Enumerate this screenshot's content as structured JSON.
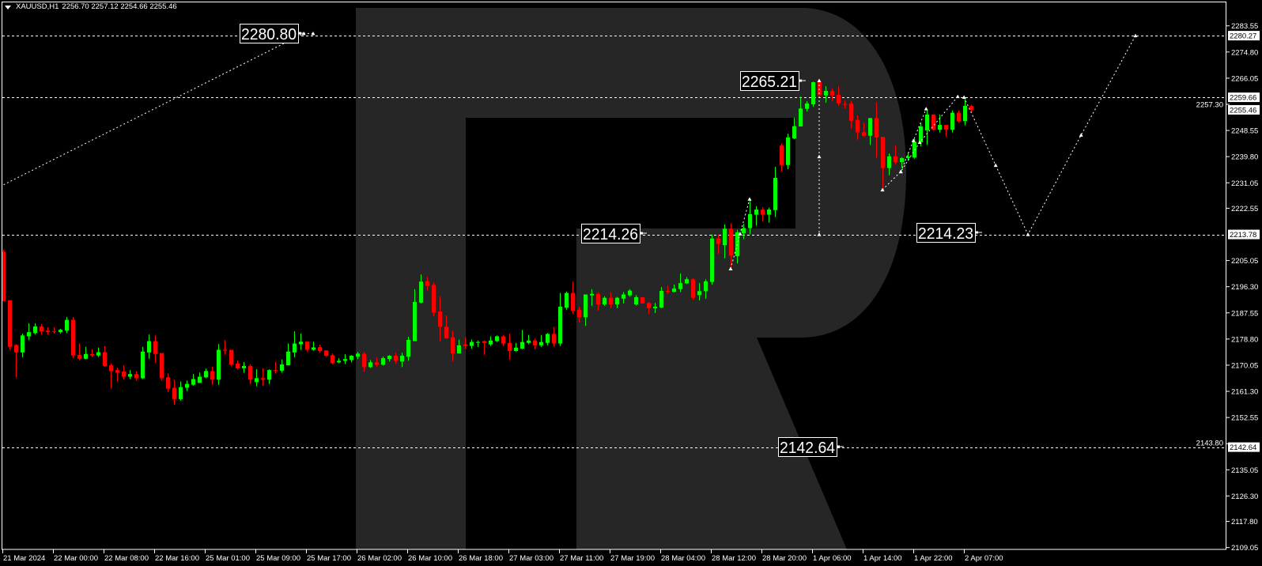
{
  "header": {
    "menu_icon": "triangle-down-icon",
    "symbol": "XAUUSD,H1",
    "ohlc": "2256.70 2257.12 2254.66 2255.46"
  },
  "colors": {
    "background": "#000000",
    "bull": "#00ff00",
    "bear": "#ff0000",
    "watermark": "#262626",
    "foreground": "#ffffff"
  },
  "chart_data": {
    "type": "candlestick",
    "symbol": "XAUUSD",
    "timeframe": "H1",
    "ylim": [
      2109.05,
      2283.55
    ],
    "grid": false,
    "y_ticks": [
      "2283.55",
      "2274.80",
      "2266.05",
      "2257.30",
      "2248.55",
      "2239.80",
      "2231.05",
      "2222.55",
      "2205.05",
      "2196.30",
      "2187.55",
      "2178.80",
      "2170.05",
      "2161.30",
      "2152.55",
      "2143.80",
      "2135.05",
      "2126.30",
      "2117.80",
      "2109.05"
    ],
    "x_ticks": [
      {
        "label": "21 Mar 2024",
        "bar": 0
      },
      {
        "label": "22 Mar 00:00",
        "bar": 8
      },
      {
        "label": "22 Mar 08:00",
        "bar": 16
      },
      {
        "label": "22 Mar 16:00",
        "bar": 24
      },
      {
        "label": "25 Mar 01:00",
        "bar": 32
      },
      {
        "label": "25 Mar 09:00",
        "bar": 40
      },
      {
        "label": "25 Mar 17:00",
        "bar": 48
      },
      {
        "label": "26 Mar 02:00",
        "bar": 56
      },
      {
        "label": "26 Mar 10:00",
        "bar": 64
      },
      {
        "label": "26 Mar 18:00",
        "bar": 72
      },
      {
        "label": "27 Mar 03:00",
        "bar": 80
      },
      {
        "label": "27 Mar 11:00",
        "bar": 88
      },
      {
        "label": "27 Mar 19:00",
        "bar": 96
      },
      {
        "label": "28 Mar 04:00",
        "bar": 104
      },
      {
        "label": "28 Mar 12:00",
        "bar": 112
      },
      {
        "label": "28 Mar 20:00",
        "bar": 120
      },
      {
        "label": "1 Apr 06:00",
        "bar": 128
      },
      {
        "label": "1 Apr 14:00",
        "bar": 136
      },
      {
        "label": "1 Apr 22:00",
        "bar": 144
      },
      {
        "label": "2 Apr 07:00",
        "bar": 152
      }
    ],
    "candle_format": [
      "open",
      "high",
      "low",
      "close"
    ],
    "candles": [
      [
        2208.0,
        2208.6,
        2191.5,
        2191.5
      ],
      [
        2191.8,
        2191.8,
        2175.1,
        2176.2
      ],
      [
        2176.8,
        2177.1,
        2166.0,
        2174.3
      ],
      [
        2174.3,
        2180.6,
        2172.7,
        2180.0
      ],
      [
        2179.7,
        2184.1,
        2178.4,
        2181.1
      ],
      [
        2180.8,
        2184.1,
        2180.3,
        2183.0
      ],
      [
        2183.0,
        2183.8,
        2180.3,
        2181.4
      ],
      [
        2181.6,
        2182.7,
        2180.3,
        2181.1
      ],
      [
        2181.4,
        2182.7,
        2180.6,
        2181.2
      ],
      [
        2181.1,
        2182.2,
        2180.6,
        2181.9
      ],
      [
        2181.6,
        2186.2,
        2180.8,
        2185.2
      ],
      [
        2185.2,
        2186.2,
        2172.5,
        2173.3
      ],
      [
        2173.5,
        2177.3,
        2171.7,
        2172.2
      ],
      [
        2172.2,
        2176.2,
        2172.0,
        2173.8
      ],
      [
        2173.8,
        2175.4,
        2172.7,
        2173.3
      ],
      [
        2173.3,
        2176.0,
        2172.7,
        2174.4
      ],
      [
        2174.4,
        2176.5,
        2169.5,
        2169.8
      ],
      [
        2170.0,
        2170.6,
        2162.2,
        2168.1
      ],
      [
        2168.4,
        2169.2,
        2164.6,
        2167.6
      ],
      [
        2167.9,
        2170.0,
        2165.2,
        2166.2
      ],
      [
        2166.2,
        2168.4,
        2165.4,
        2167.1
      ],
      [
        2167.1,
        2168.1,
        2164.9,
        2165.7
      ],
      [
        2165.7,
        2176.2,
        2165.4,
        2174.6
      ],
      [
        2174.3,
        2180.3,
        2172.2,
        2178.1
      ],
      [
        2178.1,
        2180.0,
        2170.8,
        2173.8
      ],
      [
        2174.1,
        2174.1,
        2164.9,
        2165.7
      ],
      [
        2166.0,
        2167.3,
        2161.1,
        2162.2
      ],
      [
        2162.5,
        2165.1,
        2156.8,
        2158.7
      ],
      [
        2158.7,
        2164.6,
        2158.2,
        2162.7
      ],
      [
        2162.5,
        2164.9,
        2161.4,
        2163.8
      ],
      [
        2163.5,
        2167.1,
        2163.2,
        2165.4
      ],
      [
        2164.1,
        2167.6,
        2164.1,
        2166.2
      ],
      [
        2166.0,
        2168.9,
        2165.7,
        2168.1
      ],
      [
        2168.1,
        2169.5,
        2163.5,
        2165.2
      ],
      [
        2165.2,
        2177.1,
        2163.5,
        2175.2
      ],
      [
        2175.2,
        2178.4,
        2173.5,
        2174.9
      ],
      [
        2175.2,
        2175.2,
        2169.8,
        2170.3
      ],
      [
        2170.6,
        2171.7,
        2168.7,
        2169.0
      ],
      [
        2169.0,
        2171.1,
        2167.5,
        2169.8
      ],
      [
        2169.8,
        2170.3,
        2163.8,
        2165.2
      ],
      [
        2164.4,
        2168.7,
        2163.0,
        2165.7
      ],
      [
        2165.7,
        2169.0,
        2163.2,
        2165.2
      ],
      [
        2165.2,
        2168.7,
        2163.8,
        2168.4
      ],
      [
        2168.4,
        2171.1,
        2167.3,
        2168.2
      ],
      [
        2168.2,
        2172.0,
        2167.6,
        2170.3
      ],
      [
        2170.0,
        2177.3,
        2170.0,
        2174.6
      ],
      [
        2174.3,
        2181.4,
        2172.7,
        2177.3
      ],
      [
        2177.1,
        2180.6,
        2175.2,
        2177.9
      ],
      [
        2177.9,
        2178.1,
        2174.6,
        2175.2
      ],
      [
        2175.2,
        2177.9,
        2174.9,
        2176.0
      ],
      [
        2176.1,
        2176.9,
        2174.2,
        2174.8
      ],
      [
        2175.0,
        2175.0,
        2172.9,
        2173.2
      ],
      [
        2173.4,
        2174.0,
        2170.4,
        2170.7
      ],
      [
        2171.0,
        2172.4,
        2170.7,
        2171.5
      ],
      [
        2171.5,
        2173.7,
        2170.4,
        2172.1
      ],
      [
        2171.8,
        2173.4,
        2171.0,
        2173.2
      ],
      [
        2172.9,
        2174.5,
        2172.1,
        2173.9
      ],
      [
        2173.9,
        2174.5,
        2167.8,
        2169.4
      ],
      [
        2169.4,
        2171.8,
        2169.1,
        2171.0
      ],
      [
        2171.0,
        2172.6,
        2169.4,
        2170.2
      ],
      [
        2170.2,
        2172.9,
        2169.9,
        2172.4
      ],
      [
        2172.1,
        2173.4,
        2171.3,
        2173.2
      ],
      [
        2173.2,
        2174.2,
        2170.5,
        2171.5
      ],
      [
        2171.3,
        2174.2,
        2169.4,
        2173.2
      ],
      [
        2172.9,
        2179.6,
        2171.5,
        2178.5
      ],
      [
        2178.1,
        2195.5,
        2178.1,
        2191.2
      ],
      [
        2191.0,
        2200.4,
        2190.7,
        2198.0
      ],
      [
        2198.2,
        2199.6,
        2195.0,
        2196.6
      ],
      [
        2196.9,
        2197.7,
        2186.4,
        2187.7
      ],
      [
        2188.0,
        2193.1,
        2178.1,
        2182.9
      ],
      [
        2182.9,
        2186.7,
        2178.9,
        2179.1
      ],
      [
        2179.4,
        2181.6,
        2171.3,
        2174.0
      ],
      [
        2174.0,
        2178.6,
        2174.0,
        2176.7
      ],
      [
        2177.0,
        2179.4,
        2175.6,
        2176.5
      ],
      [
        2176.5,
        2178.6,
        2175.6,
        2177.8
      ],
      [
        2177.6,
        2178.3,
        2176.2,
        2177.8
      ],
      [
        2178.1,
        2178.3,
        2173.5,
        2177.5
      ],
      [
        2177.0,
        2179.7,
        2176.5,
        2178.3
      ],
      [
        2178.1,
        2180.0,
        2177.8,
        2179.7
      ],
      [
        2179.7,
        2180.2,
        2176.5,
        2177.3
      ],
      [
        2177.5,
        2180.5,
        2171.9,
        2174.8
      ],
      [
        2174.8,
        2177.5,
        2174.6,
        2175.9
      ],
      [
        2175.6,
        2181.8,
        2175.4,
        2177.8
      ],
      [
        2177.5,
        2180.2,
        2177.0,
        2178.3
      ],
      [
        2178.3,
        2178.9,
        2175.4,
        2176.7
      ],
      [
        2176.7,
        2180.2,
        2176.2,
        2177.8
      ],
      [
        2177.5,
        2180.8,
        2176.7,
        2180.5
      ],
      [
        2180.5,
        2182.9,
        2176.2,
        2177.3
      ],
      [
        2177.3,
        2194.2,
        2176.5,
        2189.6
      ],
      [
        2189.3,
        2194.7,
        2188.6,
        2194.2
      ],
      [
        2194.2,
        2198.0,
        2187.2,
        2188.3
      ],
      [
        2188.6,
        2189.6,
        2184.3,
        2186.1
      ],
      [
        2186.1,
        2193.7,
        2183.2,
        2193.7
      ],
      [
        2193.4,
        2195.5,
        2189.9,
        2193.9
      ],
      [
        2193.9,
        2194.5,
        2188.3,
        2190.4
      ],
      [
        2190.4,
        2193.1,
        2189.9,
        2192.6
      ],
      [
        2192.6,
        2194.5,
        2189.1,
        2190.4
      ],
      [
        2190.4,
        2192.9,
        2189.1,
        2192.6
      ],
      [
        2192.3,
        2194.5,
        2190.7,
        2193.7
      ],
      [
        2193.4,
        2195.5,
        2192.9,
        2195.0
      ],
      [
        2190.4,
        2193.5,
        2190.0,
        2192.8
      ],
      [
        2192.8,
        2192.8,
        2190.7,
        2190.7
      ],
      [
        2190.9,
        2191.2,
        2187.2,
        2189.1
      ],
      [
        2189.1,
        2190.9,
        2187.5,
        2189.6
      ],
      [
        2189.3,
        2196.2,
        2189.1,
        2194.9
      ],
      [
        2194.9,
        2196.7,
        2193.8,
        2194.7
      ],
      [
        2194.6,
        2197.0,
        2194.4,
        2195.7
      ],
      [
        2195.5,
        2200.7,
        2194.5,
        2197.5
      ],
      [
        2197.4,
        2199.5,
        2197.2,
        2198.8
      ],
      [
        2198.8,
        2199.2,
        2192.0,
        2192.6
      ],
      [
        2193.5,
        2197.5,
        2191.7,
        2194.8
      ],
      [
        2194.8,
        2198.8,
        2192.2,
        2198.1
      ],
      [
        2197.9,
        2213.8,
        2197.0,
        2212.4
      ],
      [
        2212.4,
        2213.8,
        2207.2,
        2210.6
      ],
      [
        2210.2,
        2217.1,
        2205.8,
        2215.7
      ],
      [
        2215.7,
        2217.5,
        2202.3,
        2206.7
      ],
      [
        2206.5,
        2215.3,
        2204.1,
        2214.5
      ],
      [
        2214.2,
        2217.3,
        2212.2,
        2215.9
      ],
      [
        2215.9,
        2225.6,
        2213.8,
        2220.6
      ],
      [
        2220.4,
        2223.3,
        2216.7,
        2222.1
      ],
      [
        2222.1,
        2222.8,
        2218.2,
        2220.4
      ],
      [
        2220.4,
        2222.8,
        2217.7,
        2222.1
      ],
      [
        2221.9,
        2236.4,
        2219.6,
        2232.7
      ],
      [
        2243.5,
        2244.2,
        2234.9,
        2237.0
      ],
      [
        2237.0,
        2247.5,
        2235.6,
        2246.2
      ],
      [
        2245.9,
        2252.9,
        2245.6,
        2250.0
      ],
      [
        2249.9,
        2259.8,
        2249.9,
        2255.9
      ],
      [
        2255.8,
        2258.4,
        2254.9,
        2257.6
      ],
      [
        2257.3,
        2264.9,
        2256.5,
        2264.7
      ],
      [
        2264.7,
        2265.21,
        2260.3,
        2260.3
      ],
      [
        2260.3,
        2263.4,
        2257.8,
        2261.8
      ],
      [
        2261.8,
        2262.7,
        2258.4,
        2260.3
      ],
      [
        2260.5,
        2263.4,
        2256.8,
        2257.6
      ],
      [
        2257.4,
        2258.7,
        2255.9,
        2257.3
      ],
      [
        2257.6,
        2258.5,
        2249.2,
        2251.8
      ],
      [
        2252.1,
        2253.6,
        2245.5,
        2247.9
      ],
      [
        2248.0,
        2251.2,
        2246.4,
        2246.8
      ],
      [
        2246.8,
        2252.7,
        2243.7,
        2252.7
      ],
      [
        2252.7,
        2258.0,
        2239.3,
        2246.2
      ],
      [
        2246.4,
        2246.4,
        2229.2,
        2236.0
      ],
      [
        2236.0,
        2240.9,
        2233.6,
        2239.9
      ],
      [
        2239.9,
        2243.5,
        2237.1,
        2238.0
      ],
      [
        2238.0,
        2239.6,
        2236.0,
        2239.3
      ],
      [
        2239.3,
        2241.1,
        2238.4,
        2239.8
      ],
      [
        2239.5,
        2245.7,
        2239.1,
        2244.8
      ],
      [
        2244.6,
        2250.9,
        2243.3,
        2249.9
      ],
      [
        2248.6,
        2255.2,
        2243.7,
        2253.9
      ],
      [
        2253.9,
        2253.9,
        2248.5,
        2248.8
      ],
      [
        2248.8,
        2253.9,
        2247.9,
        2250.4
      ],
      [
        2250.4,
        2250.4,
        2246.5,
        2248.8
      ],
      [
        2248.8,
        2255.2,
        2247.9,
        2254.5
      ],
      [
        2254.5,
        2255.2,
        2251.2,
        2251.6
      ],
      [
        2251.7,
        2259.66,
        2250.3,
        2256.8
      ],
      [
        2256.7,
        2257.12,
        2254.66,
        2255.46
      ]
    ],
    "levels": [
      {
        "price": 2280.27,
        "label": "2280.27"
      },
      {
        "price": 2259.66,
        "label": "2259.66"
      },
      {
        "price": 2213.78,
        "label": "2213.78"
      },
      {
        "price": 2142.64,
        "label": "2142.64"
      }
    ],
    "current_price": {
      "price": 2255.46,
      "label": "2255.46"
    },
    "price_labels": [
      {
        "text": "2280.80",
        "bar": 49,
        "price": 2281.0
      },
      {
        "text": "2265.21",
        "bar": 129,
        "price": 2265.21
      },
      {
        "text": "2214.26",
        "bar": 112,
        "price": 2213.9
      },
      {
        "text": "2214.23",
        "bar": 162,
        "price": 2213.78
      },
      {
        "text": "2142.64",
        "bar": 127,
        "price": 2142.64
      }
    ],
    "annotation_lines": [
      {
        "style": "dashed",
        "points": [
          [
            -0.5,
            2229.8
          ],
          [
            47.5,
            2281.0
          ],
          [
            49,
            2281.0
          ]
        ]
      },
      {
        "style": "dashed",
        "points": [
          [
            115,
            2202.3
          ],
          [
            116.5,
            2214.0
          ],
          [
            118,
            2225.6
          ]
        ]
      },
      {
        "style": "dashed",
        "points": [
          [
            129,
            2265.21
          ],
          [
            129,
            2239.8
          ],
          [
            129,
            2213.78
          ]
        ]
      },
      {
        "style": "dashed",
        "points": [
          [
            139,
            2228.7
          ],
          [
            141.9,
            2234.8
          ],
          [
            144.9,
            2244.6
          ],
          [
            150.9,
            2259.9
          ]
        ]
      },
      {
        "style": "dashed",
        "points": [
          [
            141.9,
            2234.8
          ],
          [
            143.9,
            2245.2
          ],
          [
            145.9,
            2255.8
          ]
        ]
      },
      {
        "style": "dashed",
        "points": [
          [
            151.9,
            2259.66
          ],
          [
            156.9,
            2236.9
          ],
          [
            162,
            2213.78
          ],
          [
            170.4,
            2247.0
          ],
          [
            179,
            2280.27
          ]
        ]
      }
    ]
  }
}
